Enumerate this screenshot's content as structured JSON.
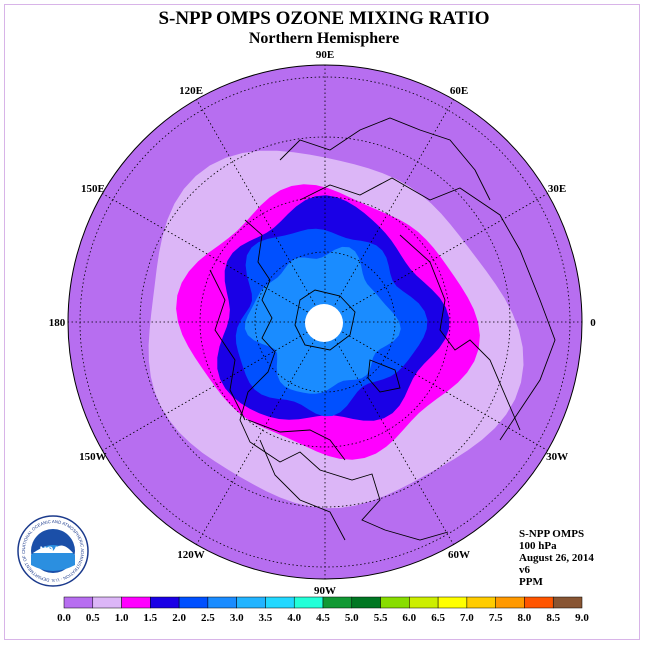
{
  "title": "S-NPP OMPS OZONE MIXING RATIO",
  "subtitle": "Northern Hemisphere",
  "longitude_labels": [
    "90E",
    "60E",
    "30E",
    "0",
    "30W",
    "60W",
    "90W",
    "120W",
    "150W",
    "180",
    "150E",
    "120E"
  ],
  "info": {
    "instrument": "S-NPP OMPS",
    "pressure": "100 hPa",
    "date": "August 26, 2014",
    "version": "v6",
    "units": "PPM"
  },
  "logo": {
    "name": "noaa-logo",
    "text": "NOAA",
    "ring_text": "NATIONAL OCEANIC AND ATMOSPHERIC ADMINISTRATION · U.S. DEPARTMENT OF COMMERCE"
  },
  "colorbar": {
    "ticks": [
      "0.0",
      "0.5",
      "1.0",
      "1.5",
      "2.0",
      "2.5",
      "3.0",
      "3.5",
      "4.0",
      "4.5",
      "5.0",
      "5.5",
      "6.0",
      "6.5",
      "7.0",
      "7.5",
      "8.0",
      "8.5",
      "9.0"
    ],
    "colors": [
      "#b76ef0",
      "#dcb6f7",
      "#ff00ff",
      "#1a00e6",
      "#0050ff",
      "#1a8cff",
      "#22b4ff",
      "#22d8ff",
      "#22ffd8",
      "#119933",
      "#007722",
      "#88dd00",
      "#ccee00",
      "#ffff00",
      "#ffcc00",
      "#ff9900",
      "#ff5500",
      "#ee0000",
      "#885533"
    ]
  },
  "map_colors": {
    "outer": "#b76ef0",
    "band_0_5": "#dcb6f7",
    "band_1_0": "#ff00ff",
    "band_1_5": "#1a00e6",
    "band_2_0": "#0050ff",
    "band_2_5": "#1a8cff",
    "pole": "#ffffff"
  }
}
